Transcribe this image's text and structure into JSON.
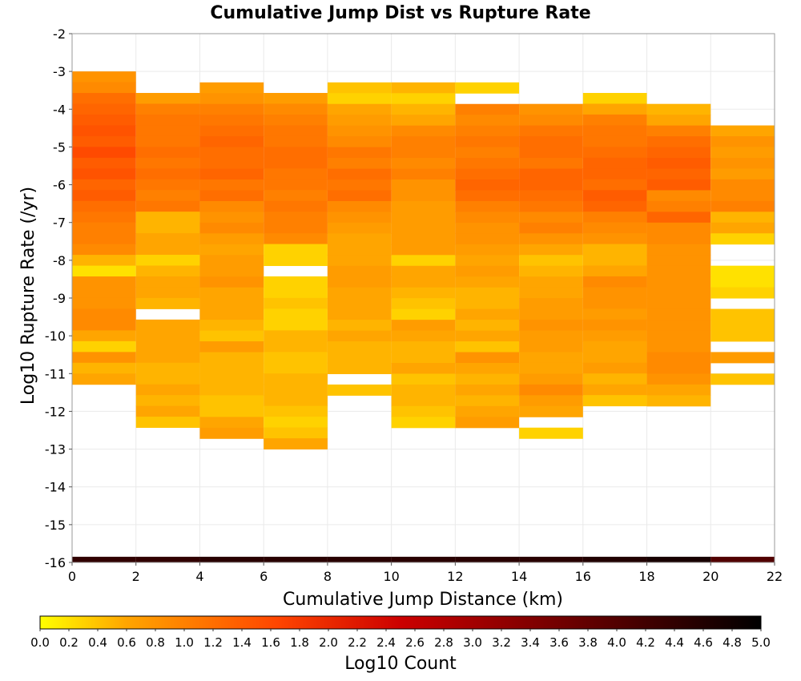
{
  "chart_data": {
    "type": "heatmap",
    "title": "Cumulative Jump Dist vs Rupture Rate",
    "xlabel": "Cumulative Jump Distance (km)",
    "ylabel": "Log10 Rupture Rate (/yr)",
    "xlim": [
      0,
      22
    ],
    "ylim": [
      -16,
      -2
    ],
    "x_ticks": [
      "0",
      "2",
      "4",
      "6",
      "8",
      "10",
      "12",
      "14",
      "16",
      "18",
      "20",
      "22"
    ],
    "y_ticks": [
      "-2",
      "-3",
      "-4",
      "-5",
      "-6",
      "-7",
      "-8",
      "-9",
      "-10",
      "-11",
      "-12",
      "-13",
      "-14",
      "-15",
      "-16"
    ],
    "x_bin_width": 2,
    "y_bin_height": 0.2857,
    "colorbar": {
      "label": "Log10 Count",
      "range": [
        0.0,
        5.0
      ],
      "ticks": [
        "0.0",
        "0.2",
        "0.4",
        "0.6",
        "0.8",
        "1.0",
        "1.2",
        "1.4",
        "1.6",
        "1.8",
        "2.0",
        "2.2",
        "2.4",
        "2.6",
        "2.8",
        "3.0",
        "3.2",
        "3.4",
        "3.6",
        "3.8",
        "4.0",
        "4.2",
        "4.4",
        "4.6",
        "4.8",
        "5.0"
      ],
      "colors": [
        "#ffff00",
        "#ffa500",
        "#ff4500",
        "#cc0000",
        "#660000",
        "#000000"
      ]
    },
    "columns": [
      {
        "x0": 0,
        "y_top": -3.0,
        "values": [
          0.8,
          0.9,
          1.2,
          1.3,
          1.4,
          1.5,
          1.4,
          1.6,
          1.4,
          1.5,
          1.3,
          1.4,
          1.2,
          1.1,
          1.0,
          1.0,
          0.9,
          0.5,
          0.2,
          0.8,
          0.8,
          0.8,
          0.9,
          0.9,
          0.6,
          0.3,
          0.8,
          0.5,
          0.6
        ]
      },
      {
        "x0": 2,
        "y_top": -3.57,
        "values": [
          0.7,
          1.0,
          1.1,
          1.1,
          1.1,
          1.2,
          1.1,
          1.2,
          1.1,
          1.0,
          1.1,
          0.5,
          0.5,
          0.6,
          0.6,
          0.3,
          0.5,
          0.6,
          0.6,
          0.5,
          null,
          0.6,
          0.6,
          0.6,
          0.6,
          0.5,
          0.5,
          0.6,
          0.5,
          0.6,
          0.4
        ]
      },
      {
        "x0": 4,
        "y_top": -3.29,
        "values": [
          0.7,
          0.8,
          1.0,
          1.1,
          1.2,
          1.3,
          1.2,
          1.2,
          1.3,
          1.1,
          1.2,
          0.9,
          0.8,
          0.9,
          0.7,
          0.6,
          0.7,
          0.7,
          0.8,
          0.6,
          0.6,
          0.6,
          0.5,
          0.4,
          0.7,
          0.5,
          0.5,
          0.5,
          0.5,
          0.4,
          0.4,
          0.6,
          0.7
        ]
      },
      {
        "x0": 6,
        "y_top": -3.57,
        "values": [
          0.7,
          0.9,
          1.0,
          1.1,
          1.1,
          1.2,
          1.2,
          1.1,
          1.1,
          1.0,
          1.1,
          1.0,
          1.0,
          0.9,
          0.3,
          0.3,
          null,
          0.3,
          0.3,
          0.4,
          0.3,
          0.3,
          0.5,
          0.5,
          0.4,
          0.4,
          0.5,
          0.5,
          0.5,
          0.4,
          0.3,
          0.4,
          0.6
        ]
      },
      {
        "x0": 8,
        "y_top": -3.29,
        "values": [
          0.4,
          0.3,
          0.6,
          0.7,
          0.8,
          0.9,
          1.1,
          1.0,
          1.2,
          1.1,
          1.2,
          0.9,
          0.8,
          0.7,
          0.6,
          0.6,
          0.6,
          0.7,
          0.7,
          0.6,
          0.6,
          0.6,
          0.5,
          0.6,
          0.5,
          0.5,
          0.5,
          null,
          0.4
        ]
      },
      {
        "x0": 10,
        "y_top": -3.29,
        "values": [
          0.5,
          0.3,
          0.5,
          0.6,
          0.9,
          1.0,
          1.0,
          0.9,
          1.0,
          0.8,
          0.8,
          0.7,
          0.7,
          0.7,
          0.7,
          0.7,
          0.3,
          0.6,
          0.6,
          0.5,
          0.4,
          0.3,
          0.7,
          0.6,
          0.5,
          0.5,
          0.6,
          0.4,
          0.5,
          0.5,
          0.4,
          0.3
        ]
      },
      {
        "x0": 12,
        "y_top": -3.29,
        "values": [
          0.3,
          null,
          1.0,
          0.9,
          1.0,
          1.1,
          1.0,
          1.1,
          1.2,
          1.3,
          1.2,
          1.0,
          0.9,
          0.8,
          0.8,
          0.7,
          0.6,
          0.7,
          0.6,
          0.5,
          0.5,
          0.6,
          0.5,
          0.6,
          0.4,
          0.8,
          0.6,
          0.5,
          0.6,
          0.5,
          0.6,
          0.7
        ]
      },
      {
        "x0": 14,
        "y_top": -3.86,
        "values": [
          0.8,
          0.9,
          1.1,
          1.2,
          1.2,
          1.1,
          1.3,
          1.3,
          1.2,
          1.1,
          0.9,
          1.0,
          0.8,
          0.6,
          0.4,
          0.5,
          0.6,
          0.6,
          0.7,
          0.7,
          0.8,
          0.7,
          0.7,
          0.6,
          0.6,
          0.7,
          0.9,
          0.7,
          0.6,
          null,
          0.3
        ]
      },
      {
        "x0": 16,
        "y_top": -3.57,
        "values": [
          0.3,
          0.6,
          1.0,
          1.1,
          1.1,
          1.2,
          1.3,
          1.3,
          1.2,
          1.4,
          1.3,
          1.0,
          0.9,
          0.8,
          0.5,
          0.5,
          0.6,
          0.9,
          0.8,
          0.8,
          0.7,
          0.8,
          0.7,
          0.6,
          0.6,
          0.7,
          0.5,
          0.6,
          0.4
        ]
      },
      {
        "x0": 18,
        "y_top": -3.86,
        "values": [
          0.5,
          0.6,
          1.0,
          1.2,
          1.3,
          1.4,
          1.3,
          1.4,
          0.9,
          1.0,
          1.3,
          0.9,
          0.9,
          0.8,
          0.8,
          0.8,
          0.8,
          0.8,
          0.8,
          0.8,
          0.8,
          0.8,
          0.8,
          0.9,
          0.9,
          0.8,
          0.6,
          0.5
        ]
      },
      {
        "x0": 20,
        "y_top": -4.43,
        "values": [
          0.6,
          0.8,
          0.7,
          0.8,
          0.7,
          0.9,
          0.9,
          1.0,
          0.5,
          0.6,
          0.3,
          null,
          null,
          0.2,
          0.2,
          0.3,
          null,
          0.4,
          0.4,
          0.4,
          null,
          0.7,
          null,
          0.4
        ]
      }
    ],
    "bottom_row": {
      "y": -16,
      "values": [
        4.4,
        4.4,
        4.5,
        4.5,
        4.5,
        4.5,
        4.5,
        4.5,
        4.6,
        4.7,
        4.0
      ]
    }
  }
}
